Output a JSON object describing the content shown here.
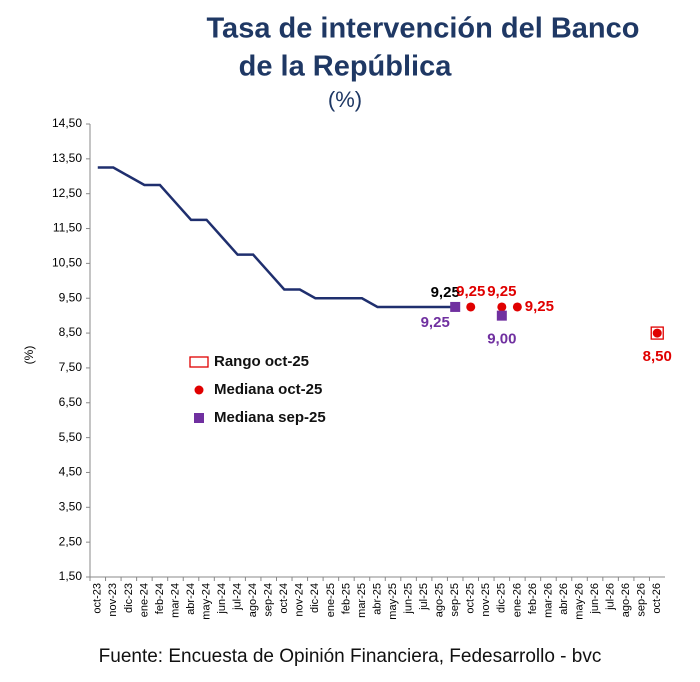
{
  "chart_data": {
    "type": "line",
    "title": [
      "Tasa de intervención del Banco",
      "de la República"
    ],
    "subtitle": "(%)",
    "y_label": "(%)",
    "source": "Fuente: Encuesta de Opinión Financiera, Fedesarrollo - bvc",
    "categories": [
      "oct-23",
      "nov-23",
      "dic-23",
      "ene-24",
      "feb-24",
      "mar-24",
      "abr-24",
      "may-24",
      "jun-24",
      "jul-24",
      "ago-24",
      "sep-24",
      "oct-24",
      "nov-24",
      "dic-24",
      "ene-25",
      "feb-25",
      "mar-25",
      "abr-25",
      "may-25",
      "jun-25",
      "jul-25",
      "ago-25",
      "sep-25",
      "oct-25",
      "nov-25",
      "dic-25",
      "ene-26",
      "feb-26",
      "mar-26",
      "abr-26",
      "may-26",
      "jun-26",
      "jul-26",
      "ago-26",
      "sep-26",
      "oct-26"
    ],
    "ylim": [
      1.5,
      14.5
    ],
    "yticks": [
      {
        "value": 1.5,
        "label": "1,50"
      },
      {
        "value": 2.5,
        "label": "2,50"
      },
      {
        "value": 3.5,
        "label": "3,50"
      },
      {
        "value": 4.5,
        "label": "4,50"
      },
      {
        "value": 5.5,
        "label": "5,50"
      },
      {
        "value": 6.5,
        "label": "6,50"
      },
      {
        "value": 7.5,
        "label": "7,50"
      },
      {
        "value": 8.5,
        "label": "8,50"
      },
      {
        "value": 9.5,
        "label": "9,50"
      },
      {
        "value": 10.5,
        "label": "10,50"
      },
      {
        "value": 11.5,
        "label": "11,50"
      },
      {
        "value": 12.5,
        "label": "12,50"
      },
      {
        "value": 13.5,
        "label": "13,50"
      },
      {
        "value": 14.5,
        "label": "14,50"
      }
    ],
    "series": [
      {
        "color": "#1f2f6e",
        "marker": "line",
        "values": [
          13.25,
          13.25,
          13.0,
          12.75,
          12.75,
          12.25,
          11.75,
          11.75,
          11.25,
          10.75,
          10.75,
          10.25,
          9.75,
          9.75,
          9.5,
          9.5,
          9.5,
          9.5,
          9.25,
          9.25,
          9.25,
          9.25,
          9.25,
          9.25,
          null,
          null,
          null,
          null,
          null,
          null,
          null,
          null,
          null,
          null,
          null,
          null,
          null
        ],
        "value_labels": [
          null,
          null,
          null,
          null,
          null,
          null,
          null,
          null,
          null,
          null,
          null,
          null,
          null,
          null,
          null,
          null,
          null,
          null,
          null,
          null,
          null,
          null,
          null,
          "9,25",
          null,
          null,
          null,
          null,
          null,
          null,
          null,
          null,
          null,
          null,
          null,
          null,
          null
        ],
        "label_color": "#000000"
      },
      {
        "name": "Rango oct-25",
        "color": "#e00000",
        "marker": "open-square",
        "values": [
          null,
          null,
          null,
          null,
          null,
          null,
          null,
          null,
          null,
          null,
          null,
          null,
          null,
          null,
          null,
          null,
          null,
          null,
          null,
          null,
          null,
          null,
          null,
          null,
          null,
          null,
          null,
          null,
          null,
          null,
          null,
          null,
          null,
          null,
          null,
          null,
          8.5
        ]
      },
      {
        "name": "Mediana oct-25",
        "color": "#e00000",
        "marker": "circle",
        "values": [
          null,
          null,
          null,
          null,
          null,
          null,
          null,
          null,
          null,
          null,
          null,
          null,
          null,
          null,
          null,
          null,
          null,
          null,
          null,
          null,
          null,
          null,
          null,
          null,
          9.25,
          null,
          9.25,
          9.25,
          null,
          null,
          null,
          null,
          null,
          null,
          null,
          null,
          8.5
        ],
        "value_labels": [
          null,
          null,
          null,
          null,
          null,
          null,
          null,
          null,
          null,
          null,
          null,
          null,
          null,
          null,
          null,
          null,
          null,
          null,
          null,
          null,
          null,
          null,
          null,
          null,
          "9,25",
          null,
          "9,25",
          "9,25",
          null,
          null,
          null,
          null,
          null,
          null,
          null,
          null,
          "8,50"
        ]
      },
      {
        "name": "Mediana sep-25",
        "color": "#7030a0",
        "marker": "square",
        "values": [
          null,
          null,
          null,
          null,
          null,
          null,
          null,
          null,
          null,
          null,
          null,
          null,
          null,
          null,
          null,
          null,
          null,
          null,
          null,
          null,
          null,
          null,
          null,
          9.25,
          null,
          null,
          9.0,
          null,
          null,
          null,
          null,
          null,
          null,
          null,
          null,
          null,
          null
        ],
        "value_labels": [
          null,
          null,
          null,
          null,
          null,
          null,
          null,
          null,
          null,
          null,
          null,
          null,
          null,
          null,
          null,
          null,
          null,
          null,
          null,
          null,
          null,
          null,
          null,
          "9,25",
          null,
          null,
          "9,00",
          null,
          null,
          null,
          null,
          null,
          null,
          null,
          null,
          null,
          null
        ]
      }
    ]
  }
}
